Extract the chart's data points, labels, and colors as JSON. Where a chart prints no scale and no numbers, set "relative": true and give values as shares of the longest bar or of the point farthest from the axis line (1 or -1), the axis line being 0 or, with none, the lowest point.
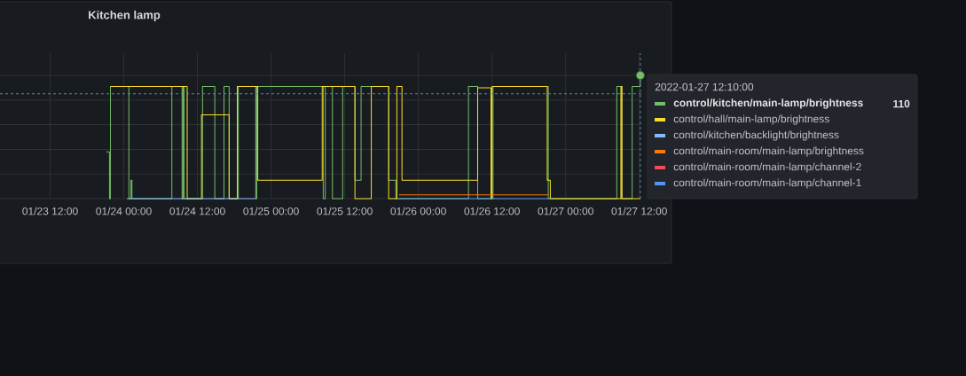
{
  "chart_data": {
    "type": "step",
    "title": "Kitchen lamp",
    "relative": true,
    "xlim": [
      "2022-01-23T03:50",
      "2022-01-27T12:20"
    ],
    "xticks": [
      {
        "value": "2022-01-23T12:00",
        "label": "01/23 12:00"
      },
      {
        "value": "2022-01-24T00:00",
        "label": "01/24 00:00"
      },
      {
        "value": "2022-01-24T12:00",
        "label": "01/24 12:00"
      },
      {
        "value": "2022-01-25T00:00",
        "label": "01/25 00:00"
      },
      {
        "value": "2022-01-25T12:00",
        "label": "01/25 12:00"
      },
      {
        "value": "2022-01-26T00:00",
        "label": "01/26 00:00"
      },
      {
        "value": "2022-01-26T12:00",
        "label": "01/26 12:00"
      },
      {
        "value": "2022-01-27T00:00",
        "label": "01/27 00:00"
      },
      {
        "value": "2022-01-27T12:00",
        "label": "01/27 12:00"
      }
    ],
    "grid": true,
    "legend": "right",
    "series": [
      {
        "name": "control/kitchen/main-lamp/brightness",
        "color": "#73bf69",
        "x": [
          "2022-01-23T21:10",
          "2022-01-23T21:40",
          "2022-01-23T21:50",
          "2022-01-24T00:50",
          "2022-01-24T01:10",
          "2022-01-24T01:20",
          "2022-01-24T07:50",
          "2022-01-24T09:30",
          "2022-01-24T09:40",
          "2022-01-24T09:50",
          "2022-01-24T12:50",
          "2022-01-24T14:50",
          "2022-01-24T16:20",
          "2022-01-24T17:10",
          "2022-01-24T18:40",
          "2022-01-24T21:30",
          "2022-01-24T21:40",
          "2022-01-25T08:30",
          "2022-01-25T08:50",
          "2022-01-25T10:00",
          "2022-01-25T11:40",
          "2022-01-25T13:40",
          "2022-01-25T14:40",
          "2022-01-25T19:10",
          "2022-01-25T20:20",
          "2022-01-26T08:10",
          "2022-01-26T09:40",
          "2022-01-26T12:10",
          "2022-01-26T21:10",
          "2022-01-27T08:20",
          "2022-01-27T09:10",
          "2022-01-27T10:50",
          "2022-01-27T12:10"
        ],
        "values": [
          0.38,
          0,
          0.91,
          0,
          0.15,
          0,
          0.91,
          0,
          0.91,
          0,
          0.91,
          0,
          0.91,
          0,
          0.91,
          0,
          0.91,
          0,
          0.91,
          0,
          0.91,
          0.15,
          0.91,
          0.15,
          0,
          0.91,
          0,
          0.91,
          0,
          0.91,
          0,
          0.91,
          1
        ]
      },
      {
        "name": "control/hall/main-lamp/brightness",
        "color": "#fade2a",
        "x": [
          "2022-01-23T21:50",
          "2022-01-24T10:20",
          "2022-01-24T12:40",
          "2022-01-24T17:10",
          "2022-01-24T18:30",
          "2022-01-24T21:50",
          "2022-01-25T08:20",
          "2022-01-25T13:40",
          "2022-01-25T16:20",
          "2022-01-25T19:10",
          "2022-01-25T20:30",
          "2022-01-25T21:20",
          "2022-01-26T09:40",
          "2022-01-26T11:50",
          "2022-01-26T12:00",
          "2022-01-26T21:00",
          "2022-01-26T21:30",
          "2022-01-27T09:00",
          "2022-01-27T09:10",
          "2022-01-27T12:10"
        ],
        "values": [
          0.91,
          0,
          0.68,
          0,
          0.91,
          0.15,
          0.91,
          0,
          0.91,
          0,
          0.91,
          0.15,
          0.9,
          0,
          0.91,
          0.15,
          0,
          0.91,
          0,
          0
        ]
      },
      {
        "name": "control/kitchen/backlight/brightness",
        "color": "#8ab8ff",
        "x": [
          "2022-01-24T00:30",
          "2022-01-24T21:30"
        ],
        "values": [
          0,
          0
        ]
      },
      {
        "name": "control/main-room/main-lamp/brightness",
        "color": "#ff780a",
        "x": [
          "2022-01-25T20:50",
          "2022-01-26T21:10"
        ],
        "values": [
          0.03,
          0.03
        ]
      },
      {
        "name": "control/main-room/main-lamp/channel-2",
        "color": "#f2495c"
      },
      {
        "name": "control/main-room/main-lamp/channel-1",
        "color": "#5794f2",
        "x": [
          "2022-01-25T20:50",
          "2022-01-26T21:30"
        ],
        "values": [
          0,
          0
        ]
      },
      {
        "type": "scatter",
        "color": "#73bf69",
        "marker": "circle",
        "x": [
          "2022-01-27T12:10"
        ],
        "values": [
          1
        ]
      }
    ],
    "ref_lines": [
      {
        "axis": "x",
        "value": "2022-01-27T12:10",
        "label": "2022-01-27 12:10:00",
        "color": "#5b8ba0",
        "line_style": "dashed"
      },
      {
        "axis": "y",
        "value": 0.85,
        "color": "#5b8ba0",
        "line_style": "dashed"
      }
    ],
    "annotations": [
      "110"
    ]
  }
}
